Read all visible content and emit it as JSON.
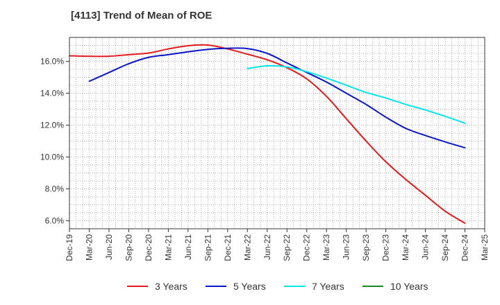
{
  "chart_data": {
    "type": "line",
    "title": "[4113]  Trend of Mean of ROE",
    "xlabel": "",
    "ylabel": "",
    "ylim": [
      5.5,
      17.5
    ],
    "yticks": [
      "6.0%",
      "8.0%",
      "10.0%",
      "12.0%",
      "14.0%",
      "16.0%"
    ],
    "ytick_values": [
      6,
      8,
      10,
      12,
      14,
      16
    ],
    "x": [
      "Dec-19",
      "Mar-20",
      "Jun-20",
      "Sep-20",
      "Dec-20",
      "Mar-21",
      "Jun-21",
      "Sep-21",
      "Dec-21",
      "Mar-22",
      "Jun-22",
      "Sep-22",
      "Dec-22",
      "Mar-23",
      "Jun-23",
      "Sep-23",
      "Dec-23",
      "Mar-24",
      "Jun-24",
      "Sep-24",
      "Dec-24",
      "Mar-25"
    ],
    "grid": true,
    "legend_position": "bottom",
    "series": [
      {
        "name": "3 Years",
        "color": "#e31a1c",
        "values": [
          16.35,
          16.32,
          16.32,
          16.42,
          16.52,
          16.78,
          16.98,
          17.02,
          16.78,
          16.45,
          16.1,
          15.6,
          14.9,
          13.8,
          12.4,
          11.0,
          9.7,
          8.6,
          7.6,
          6.6,
          5.85,
          null
        ]
      },
      {
        "name": "5 Years",
        "color": "#0a14c8",
        "values": [
          null,
          14.75,
          15.3,
          15.85,
          16.25,
          16.42,
          16.6,
          16.75,
          16.82,
          16.8,
          16.5,
          15.9,
          15.3,
          14.7,
          14.0,
          13.3,
          12.5,
          11.8,
          11.35,
          10.95,
          10.58,
          null
        ]
      },
      {
        "name": "7 Years",
        "color": "#00e5ee",
        "values": [
          null,
          null,
          null,
          null,
          null,
          null,
          null,
          null,
          null,
          15.55,
          15.72,
          15.65,
          15.35,
          14.95,
          14.5,
          14.05,
          13.7,
          13.3,
          12.95,
          12.55,
          12.12,
          null
        ]
      },
      {
        "name": "10 Years",
        "color": "#1a8a1a",
        "values": [
          null,
          null,
          null,
          null,
          null,
          null,
          null,
          null,
          null,
          null,
          null,
          null,
          null,
          null,
          null,
          null,
          null,
          null,
          null,
          null,
          null,
          null
        ]
      }
    ]
  }
}
